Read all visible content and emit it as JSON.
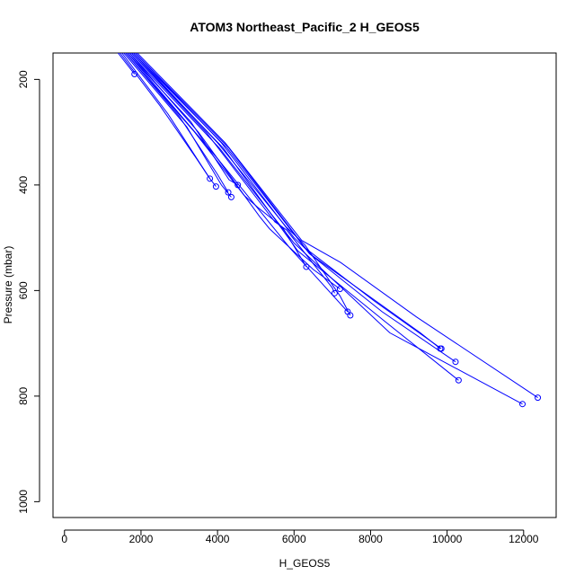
{
  "chart_data": {
    "type": "line",
    "title": "ATOM3 Northeast_Pacific_2 H_GEOS5",
    "xlabel": "H_GEOS5",
    "ylabel": "Pressure (mbar)",
    "xlim": [
      -300,
      12850
    ],
    "ylim": [
      1030,
      150
    ],
    "y_reversed": true,
    "x_ticks": [
      0,
      2000,
      4000,
      6000,
      8000,
      10000,
      12000
    ],
    "y_ticks": [
      200,
      400,
      600,
      800,
      1000
    ],
    "series_color": "#0000ff",
    "marker": "open-circle",
    "series": [
      {
        "x": [
          1400,
          1830
        ],
        "y": [
          150,
          190
        ]
      },
      {
        "x": [
          1450,
          2500,
          3450,
          3800
        ],
        "y": [
          150,
          250,
          350,
          388
        ]
      },
      {
        "x": [
          1500,
          2700,
          3800,
          3960
        ],
        "y": [
          150,
          265,
          388,
          403
        ]
      },
      {
        "x": [
          1600,
          3000,
          4000,
          4280
        ],
        "y": [
          150,
          270,
          380,
          414
        ]
      },
      {
        "x": [
          1550,
          3200,
          4100,
          4360
        ],
        "y": [
          150,
          290,
          400,
          423
        ]
      },
      {
        "x": [
          1650,
          3300,
          4300,
          4530
        ],
        "y": [
          150,
          280,
          390,
          400
        ]
      },
      {
        "x": [
          1600,
          3400,
          4700,
          5060,
          5700,
          6320
        ],
        "y": [
          150,
          300,
          420,
          443,
          480,
          555
        ]
      },
      {
        "x": [
          1700,
          3500,
          5100,
          5360,
          6500,
          7200
        ],
        "y": [
          150,
          300,
          460,
          483,
          560,
          597
        ]
      },
      {
        "x": [
          1750,
          3700,
          5500,
          5800,
          7000,
          7060
        ],
        "y": [
          150,
          300,
          470,
          485,
          595,
          605
        ]
      },
      {
        "x": [
          1800,
          4000,
          5800,
          6280,
          7200,
          7470
        ],
        "y": [
          150,
          320,
          480,
          513,
          610,
          647
        ]
      },
      {
        "x": [
          1850,
          4100,
          6000,
          6500,
          9300,
          9820
        ],
        "y": [
          150,
          320,
          500,
          535,
          680,
          710
        ]
      },
      {
        "x": [
          1900,
          4200,
          6200,
          7220,
          9200,
          12370
        ],
        "y": [
          150,
          320,
          505,
          547,
          650,
          803
        ]
      },
      {
        "x": [
          1850,
          4300,
          6300,
          8100,
          9850
        ],
        "y": [
          150,
          330,
          520,
          620,
          710
        ]
      },
      {
        "x": [
          1800,
          4250,
          6400,
          8300,
          10220
        ],
        "y": [
          150,
          330,
          530,
          640,
          735
        ]
      },
      {
        "x": [
          1750,
          4150,
          6100,
          8400,
          10300
        ],
        "y": [
          150,
          330,
          525,
          660,
          770
        ]
      },
      {
        "x": [
          1700,
          4050,
          6000,
          8500,
          11970
        ],
        "y": [
          150,
          330,
          510,
          680,
          815
        ]
      },
      {
        "x": [
          1650,
          4000,
          5900,
          7400
        ],
        "y": [
          150,
          350,
          520,
          640
        ]
      }
    ]
  }
}
